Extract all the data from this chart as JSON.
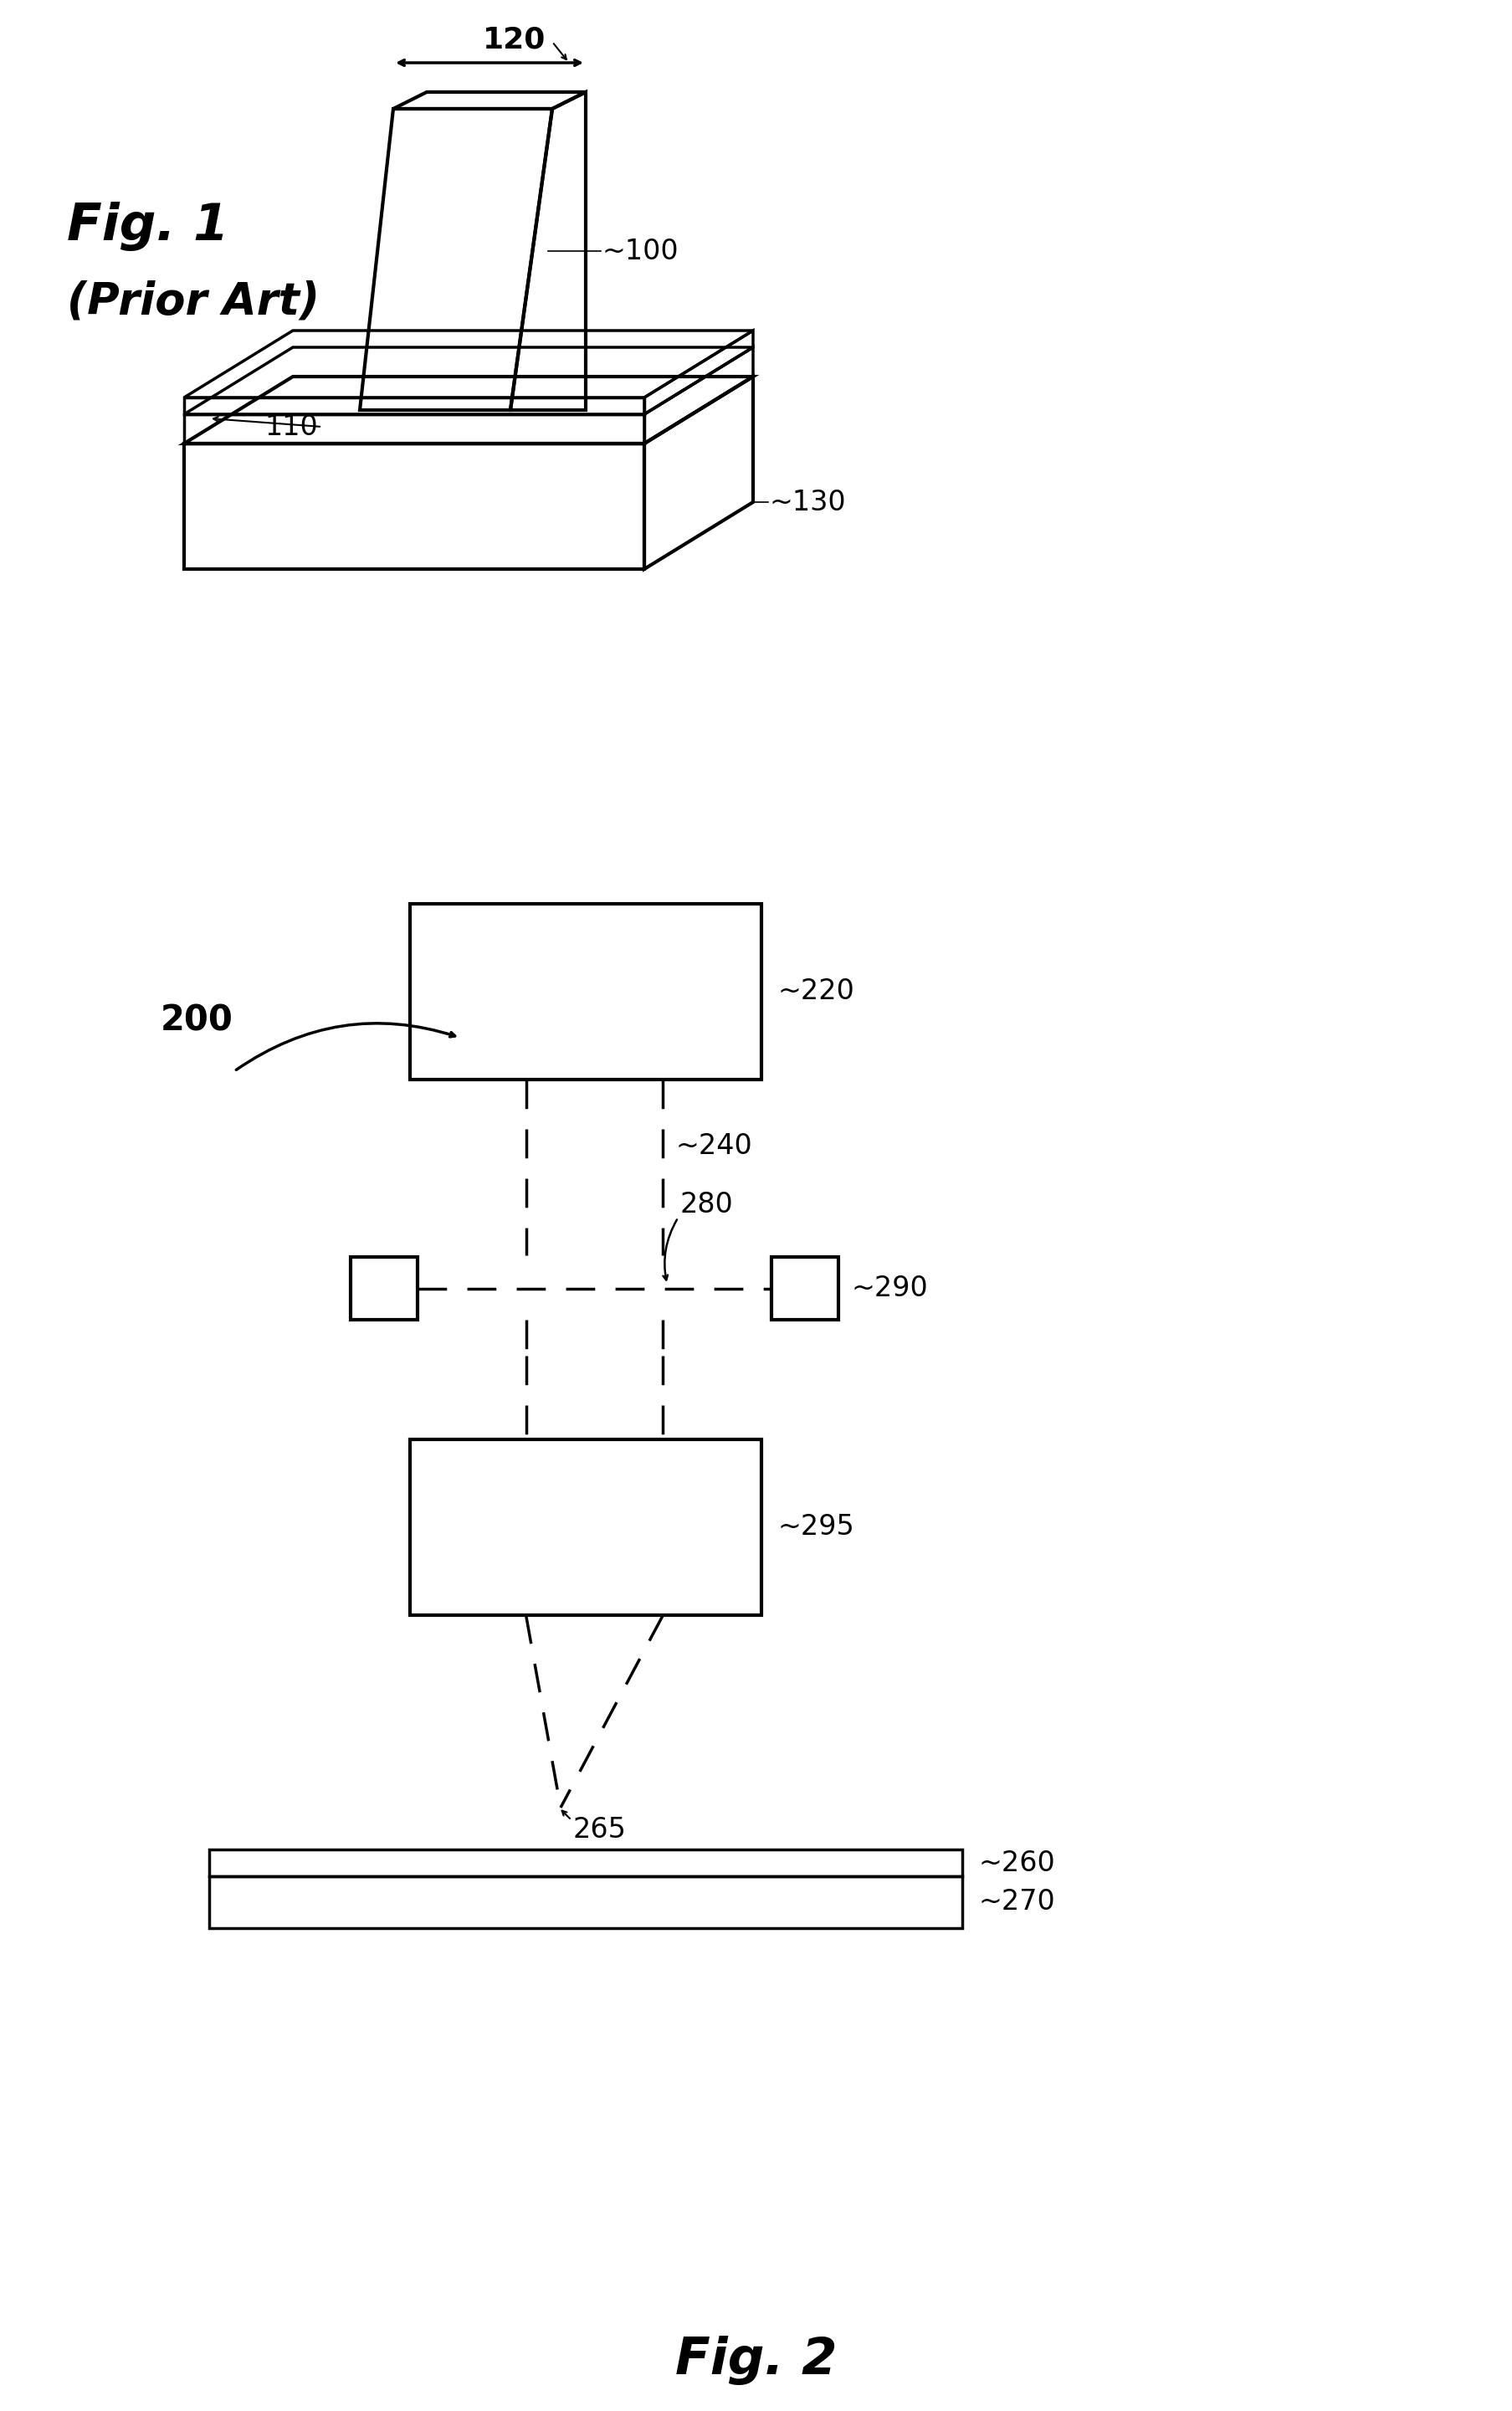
{
  "bg_color": "#ffffff",
  "fig_width": 18.08,
  "fig_height": 28.81,
  "lw": 2.5,
  "fig1": {
    "ref120": "120",
    "ref100": "~100",
    "ref110": "110",
    "ref130": "~130",
    "label1": "Fig. 1",
    "label2": "(Prior Art)"
  },
  "fig2": {
    "label": "Fig. 2",
    "ref200": "200",
    "ref220": "~220",
    "ref240": "~240",
    "ref280": "280",
    "ref290": "~290",
    "ref295": "~295",
    "ref265": "265",
    "ref260": "~260",
    "ref270": "~270"
  }
}
